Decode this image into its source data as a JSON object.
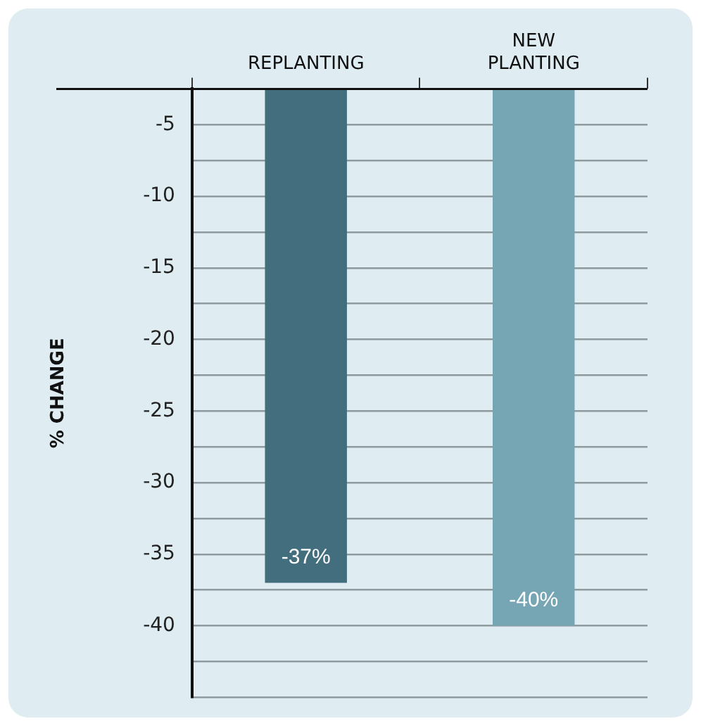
{
  "chart_data": {
    "type": "bar",
    "ylabel": "% CHANGE",
    "categories": [
      "REPLANTING",
      "NEW PLANTING"
    ],
    "values": [
      -37,
      -40
    ],
    "colors": [
      "#426e7e",
      "#76a6b3"
    ],
    "value_labels": [
      "-37%",
      "-40%"
    ],
    "ylim": [
      -45,
      -2.5
    ],
    "yticks": [
      {
        "value": -45,
        "label": null
      },
      {
        "value": -42.5,
        "label": null
      },
      -40,
      {
        "value": -37.5,
        "label": null
      },
      -35,
      {
        "value": -32.5,
        "label": null
      },
      -30,
      {
        "value": -27.5,
        "label": null
      },
      -25,
      {
        "value": -22.5,
        "label": null
      },
      -20,
      {
        "value": -17.5,
        "label": null
      },
      -15,
      {
        "value": -12.5,
        "label": null
      },
      -10,
      {
        "value": -7.5,
        "label": null
      },
      -5
    ],
    "grid": "y",
    "legend": false
  }
}
